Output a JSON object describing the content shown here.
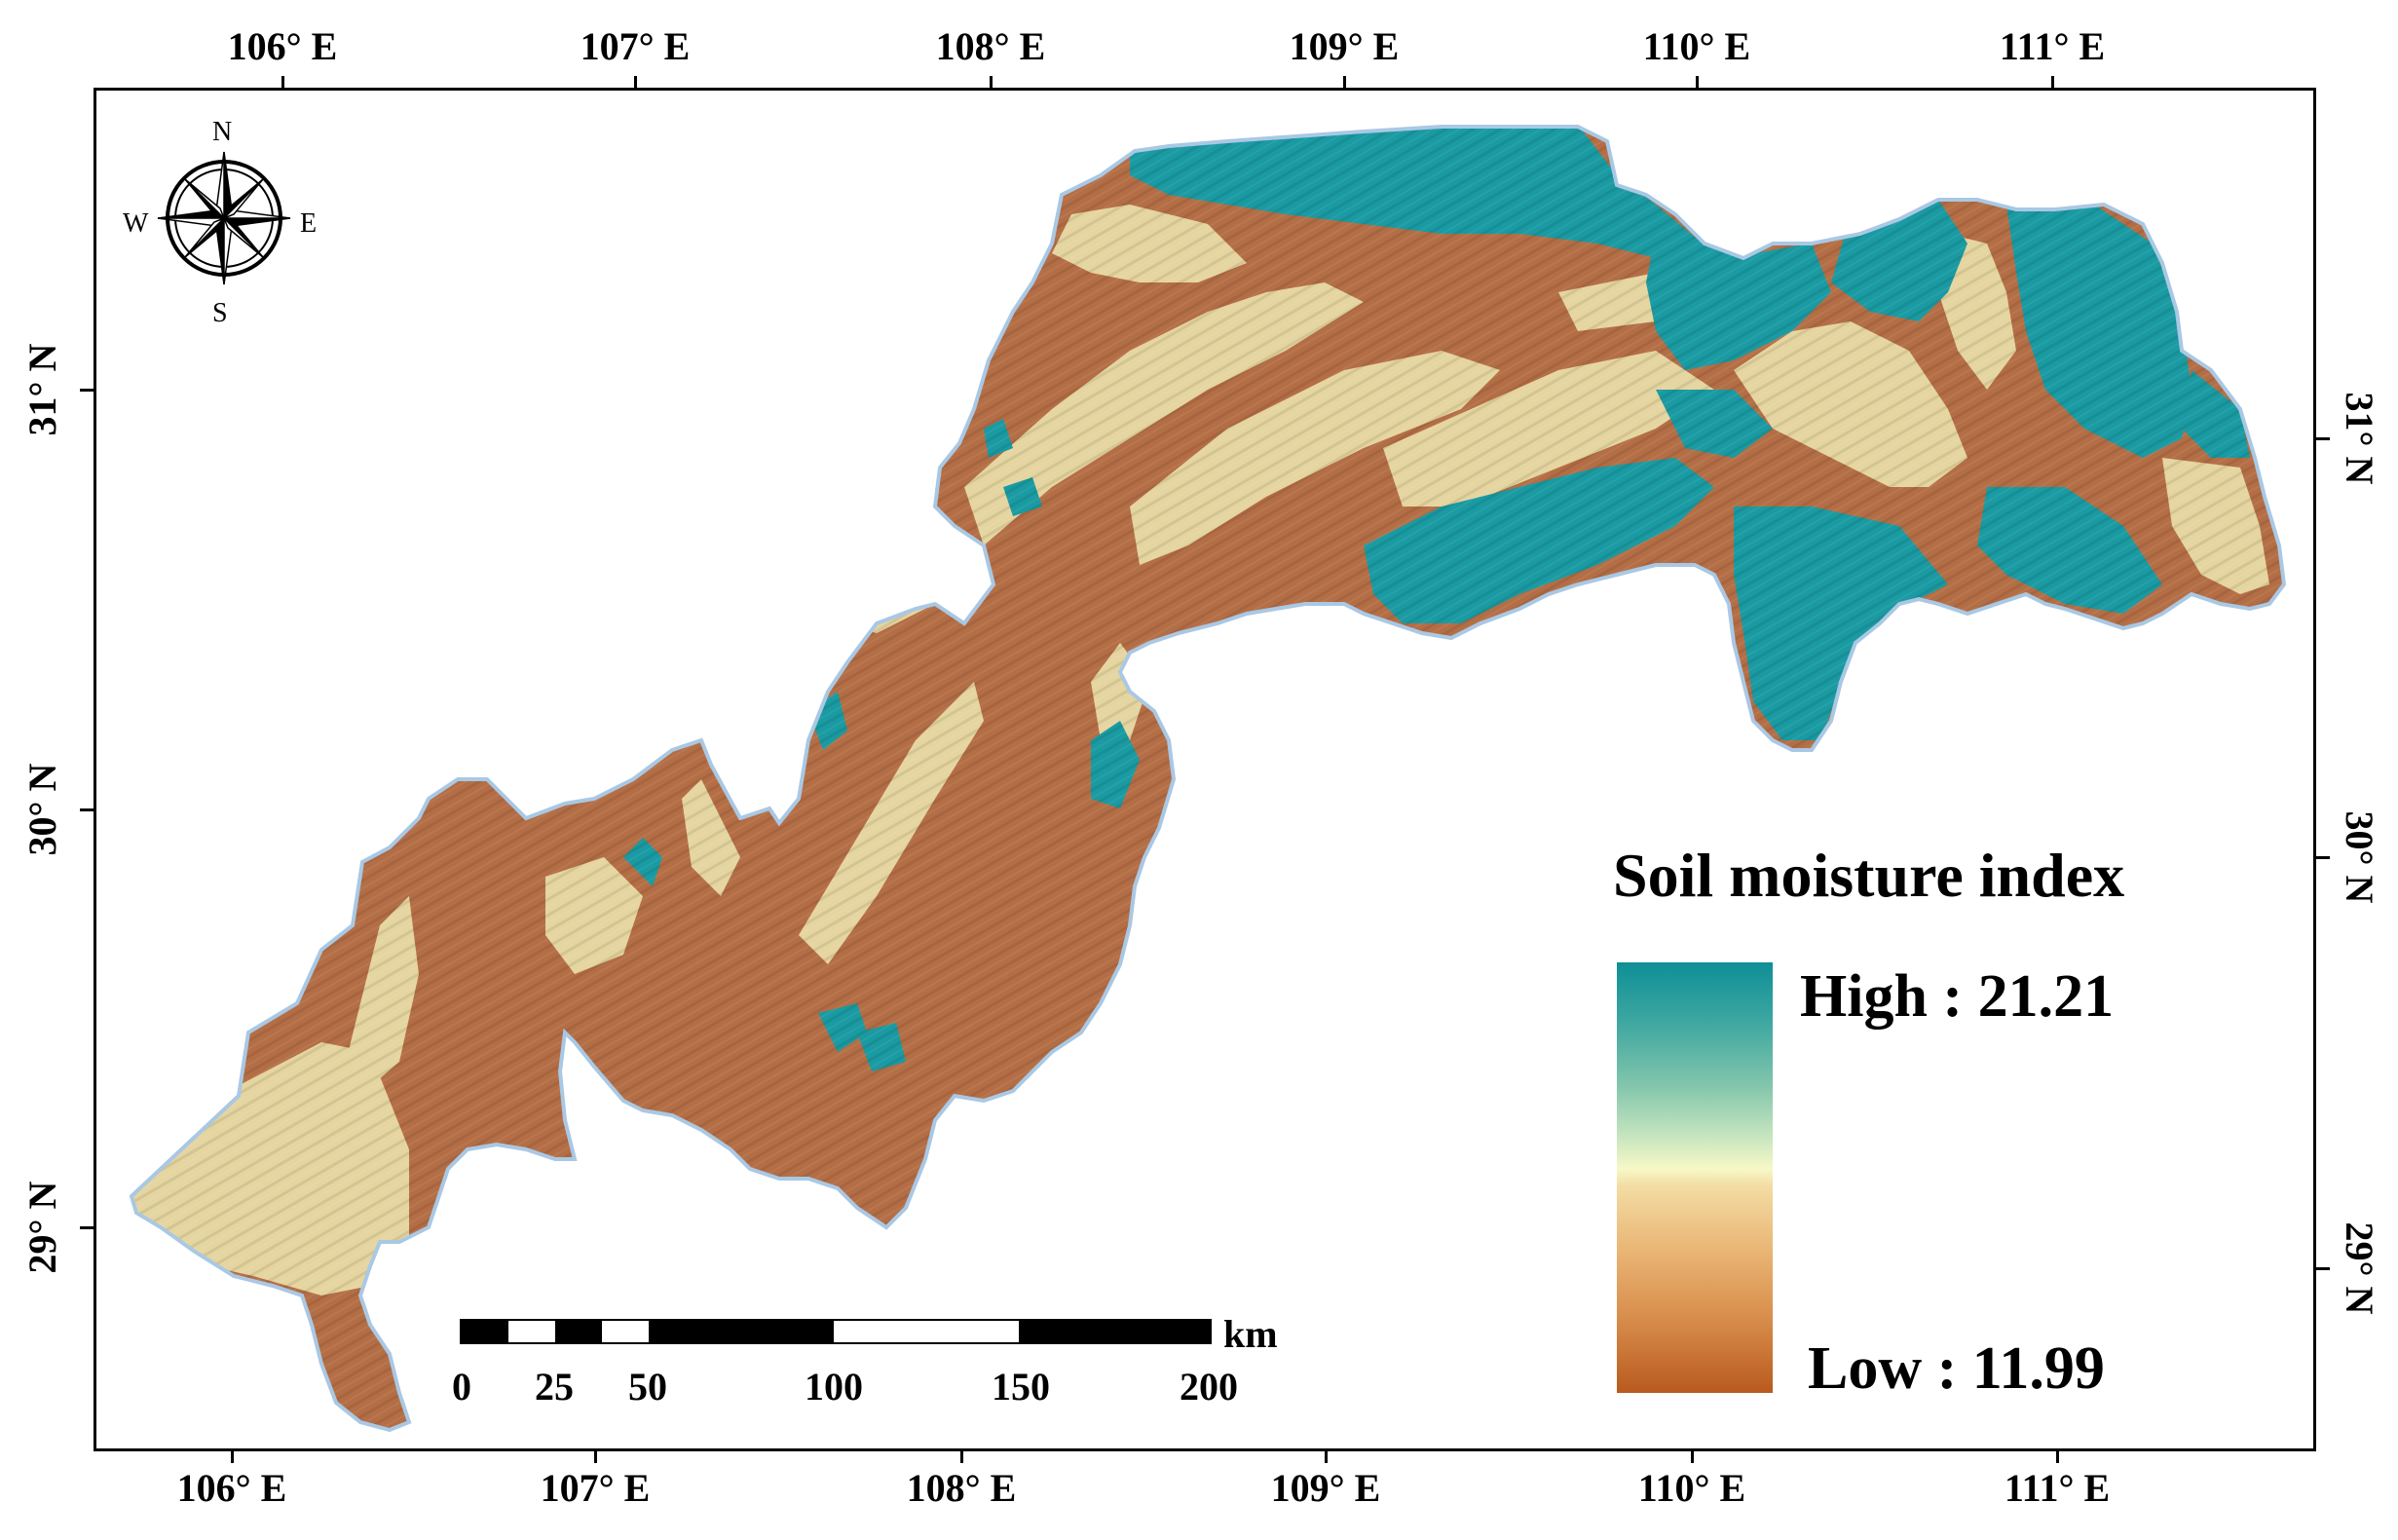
{
  "map": {
    "top_axis_labels": [
      "106° E",
      "107° E",
      "108° E",
      "109° E",
      "110° E",
      "111° E"
    ],
    "bottom_axis_labels": [
      "106° E",
      "107° E",
      "108° E",
      "109° E",
      "110° E",
      "111° E"
    ],
    "left_axis_labels": [
      "31° N",
      "30° N",
      "29° N"
    ],
    "right_axis_labels": [
      "31° N",
      "30° N",
      "29° N"
    ]
  },
  "compass": {
    "north": "N",
    "south": "S",
    "east": "E",
    "west": "W"
  },
  "legend": {
    "title": "Soil moisture index",
    "high_label": "High : 21.21",
    "low_label": "Low : 11.99",
    "colors": {
      "high": "#0e8f96",
      "mid": "#f6f8c6",
      "low": "#b95a1f"
    }
  },
  "scale_bar": {
    "labels": [
      "0",
      "25",
      "50",
      "100",
      "150",
      "200"
    ],
    "unit": "km"
  },
  "colors": {
    "moist": "#1a9aa2",
    "medium": "#e5d5a0",
    "dry": "#b46e45",
    "boundary": "#a9c8e4"
  }
}
